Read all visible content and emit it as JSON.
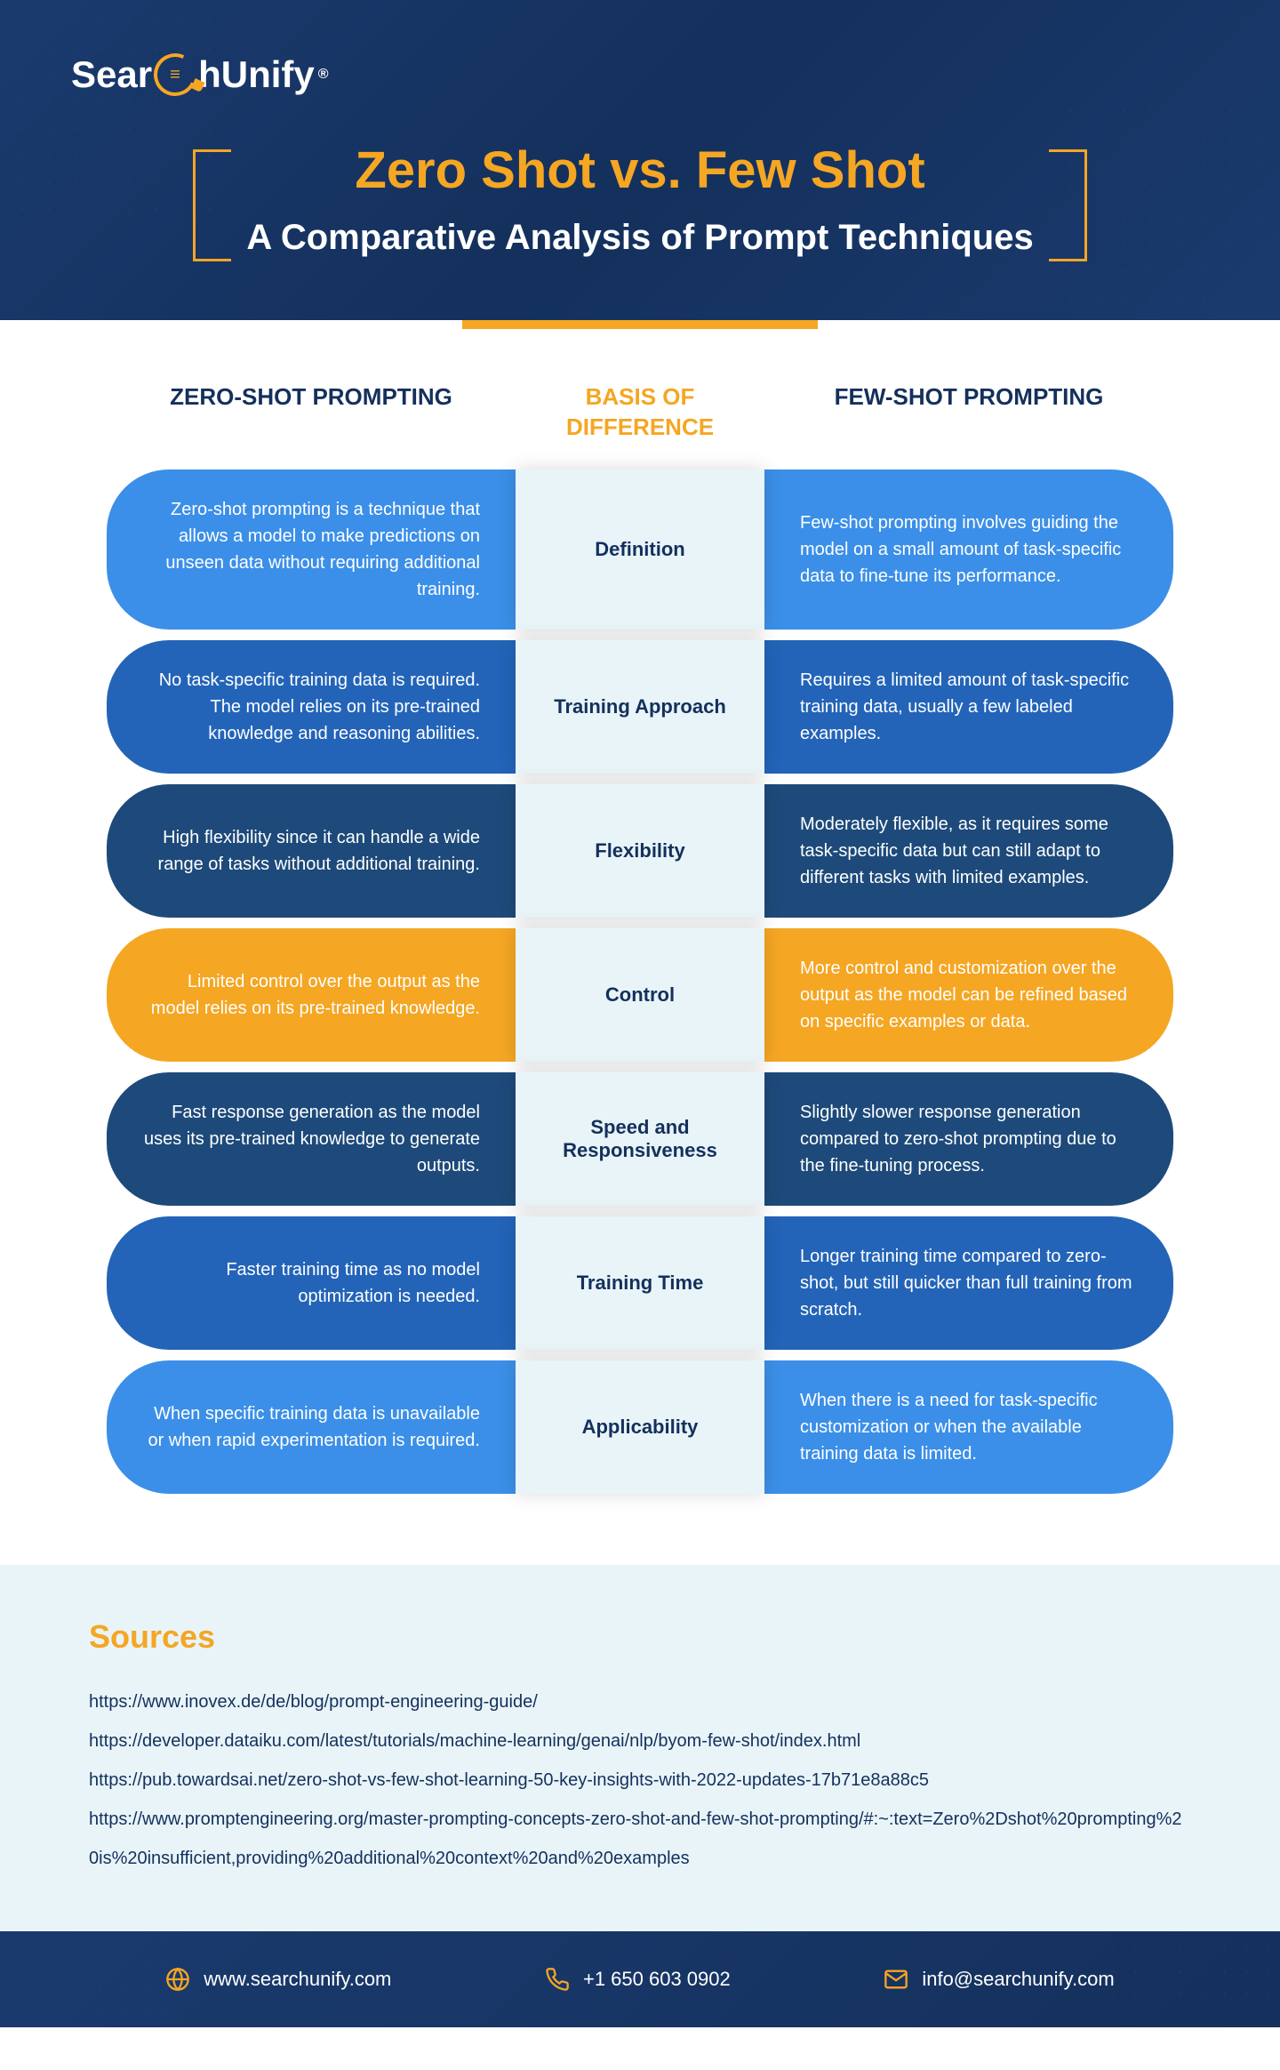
{
  "logo": {
    "part1": "Sear",
    "part2": "hUnify",
    "reg": "®"
  },
  "title": "Zero Shot vs. Few Shot",
  "subtitle": "A Comparative Analysis of Prompt Techniques",
  "accent_color": "#f5a623",
  "header_bg": "#14305c",
  "columns": {
    "left": "ZERO-SHOT PROMPTING",
    "mid": "BASIS OF DIFFERENCE",
    "right": "FEW-SHOT PROMPTING"
  },
  "row_colors": [
    "#3b8fe8",
    "#2364b8",
    "#1d4a7a",
    "#f5a623",
    "#1d4a7a",
    "#2364b8",
    "#3b8fe8"
  ],
  "mid_bg": "#e8f4f8",
  "rows": [
    {
      "left": "Zero-shot prompting is a technique that allows a model to make predictions on unseen data without requiring additional training.",
      "mid": "Definition",
      "right": "Few-shot prompting involves guiding the model on a small amount of task-specific data to fine-tune its performance."
    },
    {
      "left": "No task-specific training data is required. The model relies on its pre-trained knowledge and reasoning abilities.",
      "mid": "Training Approach",
      "right": "Requires a limited amount of task-specific training data, usually a few labeled examples."
    },
    {
      "left": "High flexibility since it can handle a wide range of tasks without additional training.",
      "mid": "Flexibility",
      "right": "Moderately flexible, as it requires some task-specific data but can still adapt to different tasks with limited examples."
    },
    {
      "left": "Limited control over the output as the model relies on its pre-trained knowledge.",
      "mid": "Control",
      "right": "More control and customization over the output as the model can be refined based on specific examples or data."
    },
    {
      "left": "Fast response generation as the model uses its pre-trained knowledge to generate outputs.",
      "mid": "Speed and Responsiveness",
      "right": "Slightly slower response generation compared to zero-shot prompting due to the fine-tuning process."
    },
    {
      "left": "Faster training time as no model optimization is needed.",
      "mid": "Training Time",
      "right": "Longer training time compared to zero-shot, but still quicker than full training from scratch."
    },
    {
      "left": "When specific training data is unavailable or when rapid experimentation is required.",
      "mid": "Applicability",
      "right": "When there is a need for task-specific customization or when the available training data is limited."
    }
  ],
  "sources": {
    "title": "Sources",
    "links": [
      "https://www.inovex.de/de/blog/prompt-engineering-guide/",
      "https://developer.dataiku.com/latest/tutorials/machine-learning/genai/nlp/byom-few-shot/index.html",
      "https://pub.towardsai.net/zero-shot-vs-few-shot-learning-50-key-insights-with-2022-updates-17b71e8a88c5",
      "https://www.promptengineering.org/master-prompting-concepts-zero-shot-and-few-shot-prompting/#:~:text=Zero%2Dshot%20prompting%20is%20insufficient,providing%20additional%20context%20and%20examples"
    ]
  },
  "footer": {
    "website": "www.searchunify.com",
    "phone": "+1 650 603 0902",
    "email": "info@searchunify.com"
  }
}
